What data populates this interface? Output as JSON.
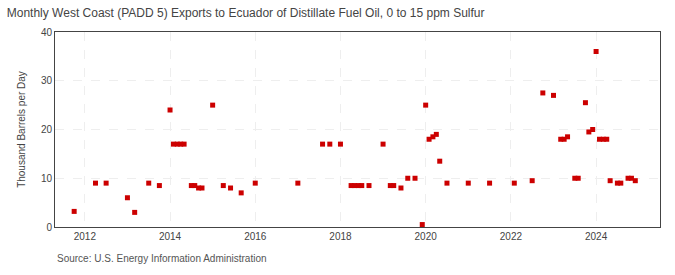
{
  "chart_data": {
    "type": "scatter",
    "title": "Monthly West Coast (PADD 5) Exports to Ecuador of Distillate Fuel Oil, 0 to 15 ppm Sulfur",
    "ylabel": "Thousand Barrels per Day",
    "annotations": [
      "Source: U.S. Energy Information Administration"
    ],
    "color": "#cc0000",
    "marker": "square",
    "grid": true,
    "xlim": [
      2011.3,
      2025.5
    ],
    "xticks": [
      2012,
      2014,
      2016,
      2018,
      2020,
      2022,
      2024
    ],
    "ylim": [
      0,
      40
    ],
    "yticks": [
      0,
      10,
      20,
      30,
      40
    ],
    "x": [
      2011.75,
      2012.25,
      2012.5,
      2013.0,
      2013.17,
      2013.5,
      2013.75,
      2014.0,
      2014.08,
      2014.17,
      2014.25,
      2014.33,
      2014.5,
      2014.58,
      2014.67,
      2014.75,
      2015.0,
      2015.25,
      2015.42,
      2015.67,
      2016.0,
      2017.0,
      2017.58,
      2017.75,
      2018.0,
      2018.25,
      2018.33,
      2018.42,
      2018.5,
      2018.67,
      2019.0,
      2019.17,
      2019.25,
      2019.42,
      2019.58,
      2019.75,
      2019.92,
      2020.0,
      2020.08,
      2020.17,
      2020.25,
      2020.33,
      2020.5,
      2021.0,
      2021.5,
      2022.08,
      2022.5,
      2022.75,
      2023.0,
      2023.17,
      2023.25,
      2023.33,
      2023.5,
      2023.58,
      2023.75,
      2023.83,
      2023.92,
      2024.0,
      2024.08,
      2024.17,
      2024.25,
      2024.33,
      2024.5,
      2024.58,
      2024.75,
      2024.83,
      2024.92
    ],
    "values": [
      3.2,
      9.0,
      9.0,
      6.0,
      3.0,
      9.0,
      8.5,
      24.0,
      17.0,
      17.0,
      17.0,
      17.0,
      8.5,
      8.5,
      8.0,
      8.0,
      25.0,
      8.5,
      8.0,
      7.0,
      9.0,
      9.0,
      17.0,
      17.0,
      17.0,
      8.5,
      8.5,
      8.5,
      8.5,
      8.5,
      17.0,
      8.5,
      8.5,
      8.0,
      10.0,
      10.0,
      0.5,
      25.0,
      18.0,
      18.5,
      19.0,
      13.5,
      9.0,
      9.0,
      9.0,
      9.0,
      9.5,
      27.5,
      27.0,
      18.0,
      18.0,
      18.5,
      10.0,
      10.0,
      25.5,
      19.5,
      20.0,
      36.0,
      18.0,
      18.0,
      18.0,
      9.5,
      9.0,
      9.0,
      10.0,
      10.0,
      9.5
    ]
  }
}
